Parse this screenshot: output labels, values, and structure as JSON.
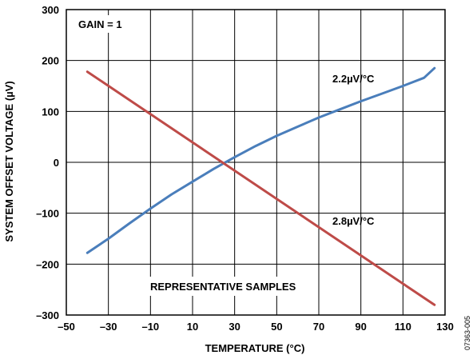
{
  "chart_data": {
    "type": "line",
    "xlabel": "TEMPERATURE (°C)",
    "ylabel": "SYSTEM OFFSET VOLTAGE (µV)",
    "xlim": [
      -50,
      130
    ],
    "ylim": [
      -300,
      300
    ],
    "x_ticks": [
      "–50",
      "–30",
      "–10",
      "10",
      "30",
      "50",
      "70",
      "90",
      "110",
      "130"
    ],
    "y_ticks": [
      "300",
      "200",
      "100",
      "0",
      "–100",
      "–200",
      "–300"
    ],
    "grid": true,
    "series": [
      {
        "name": "2.2µV/°C",
        "color": "#4a7ebb",
        "x": [
          -40,
          -30,
          -20,
          -10,
          0,
          10,
          20,
          30,
          40,
          50,
          60,
          70,
          80,
          90,
          100,
          110,
          120,
          125
        ],
        "y": [
          -178,
          -150,
          -120,
          -91,
          -63,
          -38,
          -13,
          10,
          32,
          52,
          70,
          88,
          104,
          120,
          135,
          150,
          166,
          185
        ]
      },
      {
        "name": "2.8µV/°C",
        "color": "#be4b48",
        "x": [
          -40,
          125
        ],
        "y": [
          178,
          -280
        ]
      }
    ],
    "annotations": {
      "gain": "GAIN = 1",
      "samples": "REPRESENTATIVE SAMPLES",
      "figure_id": "07363-005"
    }
  }
}
